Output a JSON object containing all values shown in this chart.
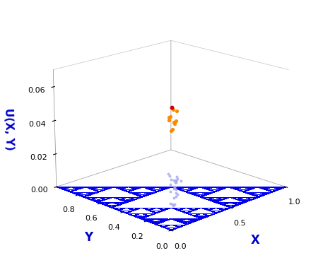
{
  "title": "",
  "xlabel": "X",
  "ylabel": "Y",
  "zlabel": "U(X, Y)",
  "xlim": [
    0.0,
    1.0
  ],
  "ylim": [
    0.0,
    1.0
  ],
  "zlim": [
    0.0,
    0.07
  ],
  "zticks": [
    0.0,
    0.02,
    0.04,
    0.06
  ],
  "xticks": [
    0.0,
    0.5,
    1.0
  ],
  "yticks": [
    0.0,
    0.2,
    0.4,
    0.6,
    0.8
  ],
  "base_color": "#0000EE",
  "hot_color_1": "#CC0000",
  "hot_color_2": "#FF8800",
  "light_blue_color": "#AAAAEE",
  "label_color": "#0000CC",
  "elev": 18,
  "azim": -135,
  "k": 100
}
